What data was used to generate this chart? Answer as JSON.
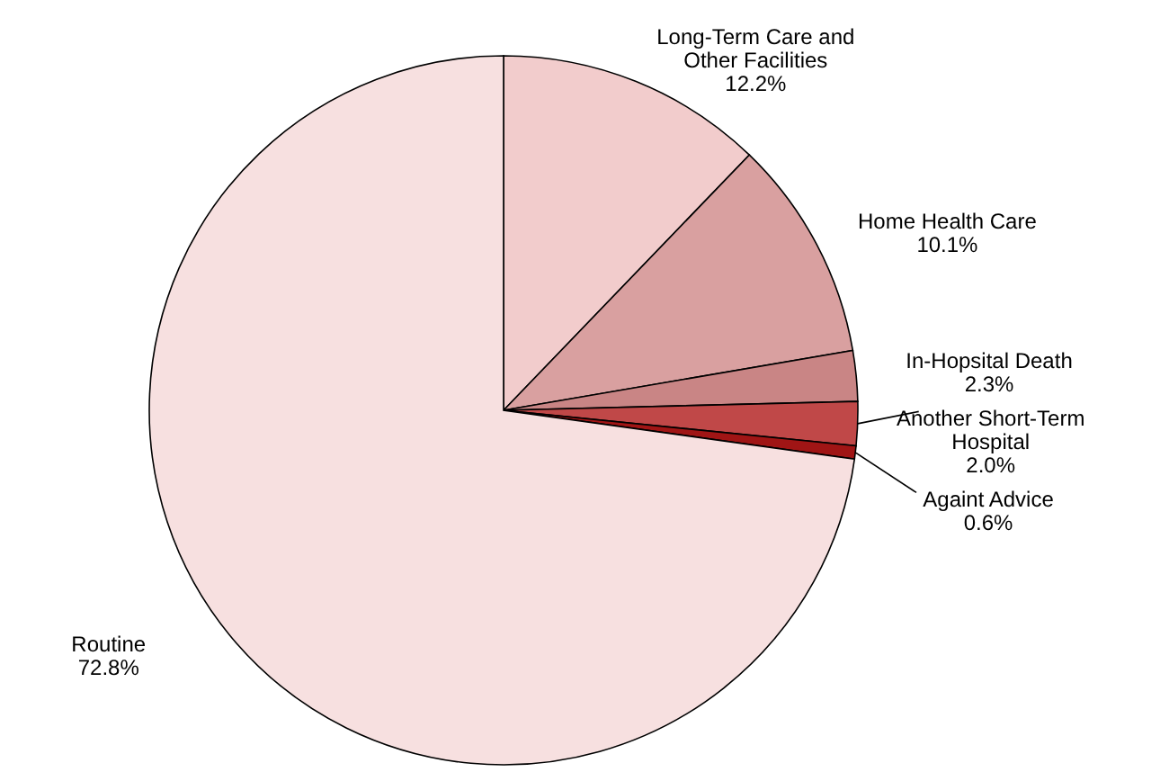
{
  "chart_data": {
    "type": "pie",
    "categories": [
      "Long-Term Care and Other Facilities",
      "Home Health Care",
      "In-Hopsital Death",
      "Another Short-Term Hospital",
      "Againt Advice",
      "Routine"
    ],
    "values": [
      12.2,
      10.1,
      2.3,
      2.0,
      0.6,
      72.8
    ],
    "colors": [
      "#f2cccc",
      "#d9a0a0",
      "#c98585",
      "#c04848",
      "#a01515",
      "#f7e0e0"
    ],
    "value_labels": [
      "12.2%",
      "10.1%",
      "2.3%",
      "2.0%",
      "0.6%",
      "72.8%"
    ]
  }
}
